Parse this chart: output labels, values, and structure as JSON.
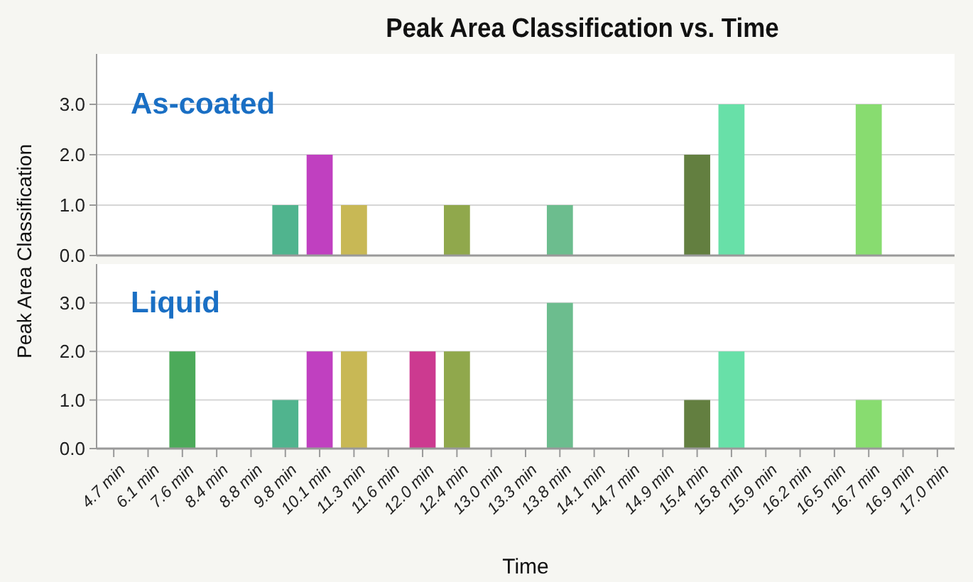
{
  "chart_data": [
    {
      "type": "bar",
      "title": "Peak Area Classification vs. Time",
      "ylabel": "Peak Area Classification",
      "annotations": [
        "As-coated"
      ],
      "categories": [
        null,
        null,
        null,
        null,
        null,
        null,
        null,
        null,
        null,
        null,
        null,
        null,
        null,
        null,
        null,
        null,
        null,
        null,
        null,
        null,
        null,
        null,
        null,
        null,
        null
      ],
      "values": [
        null,
        null,
        null,
        null,
        null,
        1,
        2,
        1,
        null,
        null,
        1,
        null,
        null,
        1,
        null,
        null,
        null,
        2,
        3,
        null,
        null,
        null,
        3,
        null,
        null
      ],
      "colors": [
        null,
        null,
        null,
        null,
        null,
        "#50b48e",
        "#c040c0",
        "#c8b855",
        null,
        null,
        "#90a84c",
        null,
        null,
        "#6cbd8e",
        null,
        null,
        null,
        "#637f40",
        "#68e0a8",
        null,
        null,
        null,
        "#88dc70",
        null,
        null
      ],
      "ylim": [
        0,
        4
      ],
      "yticks": [
        {
          "value": 0,
          "label": "0.0"
        },
        {
          "value": 1,
          "label": "1.0"
        },
        {
          "value": 2,
          "label": "2.0"
        },
        {
          "value": 3,
          "label": "3.0"
        }
      ],
      "grid": "y",
      "tick_labels": "y"
    },
    {
      "type": "bar",
      "xlabel": "Time",
      "annotations": [
        "Liquid"
      ],
      "categories": [
        "4.7 min",
        "6.1 min",
        "7.6 min",
        "8.4 min",
        "8.8 min",
        "9.8 min",
        "10.1 min",
        "11.3 min",
        "11.6 min",
        "12.0 min",
        "12.4 min",
        "13.0 min",
        "13.3 min",
        "13.8 min",
        "14.1 min",
        "14.7 min",
        "14.9 min",
        "15.4 min",
        "15.8 min",
        "15.9 min",
        "16.2 min",
        "16.5 min",
        "16.7 min",
        "16.9 min",
        "17.0 min"
      ],
      "values": [
        null,
        null,
        2,
        null,
        null,
        1,
        2,
        2,
        null,
        2,
        2,
        null,
        null,
        3,
        null,
        null,
        null,
        1,
        2,
        null,
        null,
        null,
        1,
        null,
        null
      ],
      "colors": [
        null,
        null,
        "#4caa5a",
        null,
        null,
        "#50b48e",
        "#c040c0",
        "#c8b855",
        null,
        "#cc3a90",
        "#90a84c",
        null,
        null,
        "#6cbd8e",
        null,
        null,
        null,
        "#637f40",
        "#68e0a8",
        null,
        null,
        null,
        "#88dc70",
        null,
        null
      ],
      "ylim": [
        0,
        3.8
      ],
      "yticks": [
        {
          "value": 0,
          "label": "0.0"
        },
        {
          "value": 1,
          "label": "1.0"
        },
        {
          "value": 2,
          "label": "2.0"
        },
        {
          "value": 3,
          "label": "3.0"
        }
      ],
      "grid": "y"
    }
  ]
}
